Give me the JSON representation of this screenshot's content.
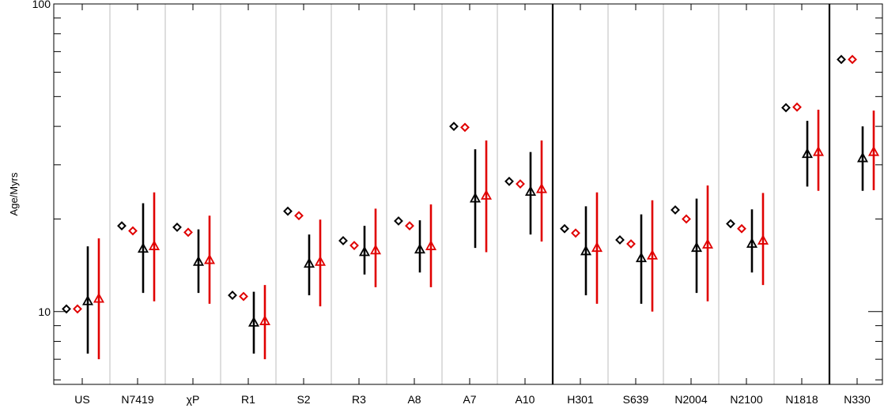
{
  "chart_data": {
    "type": "scatter",
    "ylabel": "Age/Myrs",
    "xlabel": "",
    "title": "",
    "yscale": "log",
    "ylim": [
      5.8,
      100
    ],
    "y_ticks": [
      10,
      100
    ],
    "y_tick_labels": [
      "10",
      "100"
    ],
    "grid": false,
    "categories": [
      "US",
      "N7419",
      "χP",
      "R1",
      "S2",
      "R3",
      "A8",
      "A7",
      "A10",
      "H301",
      "S639",
      "N2004",
      "N2100",
      "N1818",
      "N330"
    ],
    "group_dividers_after": [
      8,
      13
    ],
    "series": [
      {
        "marker": "diamond",
        "color": "#000000",
        "values": [
          10.2,
          19.0,
          18.8,
          11.3,
          21.2,
          17.0,
          19.7,
          40.0,
          26.5,
          18.6,
          17.1,
          21.4,
          19.3,
          46.0,
          66.0
        ]
      },
      {
        "marker": "diamond",
        "color": "#e00000",
        "values": [
          10.2,
          18.3,
          18.1,
          11.2,
          20.5,
          16.4,
          19.0,
          39.7,
          26.0,
          18.0,
          16.6,
          20.0,
          18.6,
          46.2,
          66.0
        ]
      },
      {
        "marker": "triangle",
        "color": "#000000",
        "values": [
          10.8,
          16.0,
          14.5,
          9.2,
          14.3,
          15.6,
          15.9,
          23.3,
          24.5,
          15.7,
          14.9,
          16.1,
          16.6,
          32.5,
          31.5
        ],
        "lower": [
          7.3,
          11.5,
          11.5,
          7.3,
          11.3,
          13.2,
          13.4,
          16.1,
          17.8,
          11.3,
          10.6,
          11.5,
          13.4,
          25.5,
          24.7
        ],
        "upper": [
          16.3,
          22.5,
          18.5,
          11.6,
          17.8,
          19.0,
          19.8,
          33.7,
          33.0,
          22.0,
          20.7,
          23.3,
          21.5,
          41.7,
          40.0
        ]
      },
      {
        "marker": "triangle",
        "color": "#e00000",
        "values": [
          11.0,
          16.3,
          14.7,
          9.3,
          14.5,
          15.8,
          16.3,
          23.8,
          25.0,
          16.1,
          15.2,
          16.5,
          17.0,
          33.0,
          33.0
        ],
        "lower": [
          7.0,
          10.8,
          10.6,
          7.0,
          10.4,
          12.0,
          12.0,
          15.6,
          16.9,
          10.6,
          10.0,
          10.8,
          12.2,
          24.7,
          24.8
        ],
        "upper": [
          17.3,
          24.4,
          20.5,
          12.2,
          19.9,
          21.6,
          22.3,
          36.0,
          36.0,
          24.4,
          23.0,
          25.7,
          24.3,
          45.3,
          45.0
        ]
      }
    ]
  }
}
